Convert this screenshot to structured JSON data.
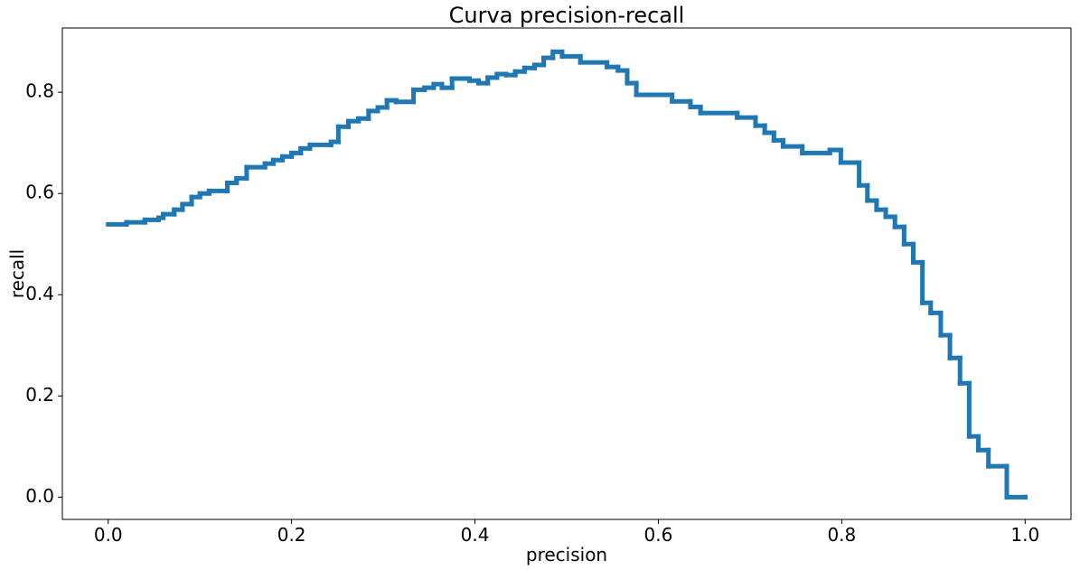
{
  "chart_data": {
    "type": "line",
    "drawstyle": "steps-post",
    "title": "Curva precision-recall",
    "x_label": "precision",
    "y_label": "recall",
    "color": "#1f77b4",
    "x": [
      0,
      0.02,
      0.04,
      0.055,
      0.06,
      0.072,
      0.081,
      0.091,
      0.1,
      0.11,
      0.13,
      0.14,
      0.151,
      0.171,
      0.18,
      0.19,
      0.2,
      0.21,
      0.22,
      0.243,
      0.251,
      0.262,
      0.273,
      0.284,
      0.294,
      0.304,
      0.314,
      0.333,
      0.345,
      0.355,
      0.364,
      0.375,
      0.394,
      0.404,
      0.414,
      0.424,
      0.434,
      0.444,
      0.454,
      0.465,
      0.475,
      0.485,
      0.495,
      0.515,
      0.544,
      0.556,
      0.566,
      0.576,
      0.615,
      0.635,
      0.646,
      0.686,
      0.706,
      0.716,
      0.726,
      0.736,
      0.757,
      0.787,
      0.799,
      0.819,
      0.828,
      0.838,
      0.848,
      0.858,
      0.868,
      0.878,
      0.888,
      0.897,
      0.908,
      0.918,
      0.929,
      0.939,
      0.949,
      0.96,
      0.98,
      1.0
    ],
    "values": [
      0.539,
      0.543,
      0.548,
      0.552,
      0.559,
      0.568,
      0.579,
      0.593,
      0.6,
      0.605,
      0.621,
      0.63,
      0.652,
      0.659,
      0.666,
      0.673,
      0.68,
      0.689,
      0.696,
      0.702,
      0.732,
      0.743,
      0.748,
      0.763,
      0.77,
      0.784,
      0.781,
      0.805,
      0.809,
      0.816,
      0.809,
      0.827,
      0.823,
      0.818,
      0.829,
      0.836,
      0.834,
      0.841,
      0.848,
      0.854,
      0.868,
      0.88,
      0.871,
      0.859,
      0.85,
      0.843,
      0.818,
      0.795,
      0.782,
      0.771,
      0.759,
      0.75,
      0.734,
      0.72,
      0.705,
      0.693,
      0.68,
      0.686,
      0.661,
      0.616,
      0.586,
      0.568,
      0.554,
      0.534,
      0.5,
      0.464,
      0.384,
      0.364,
      0.32,
      0.275,
      0.225,
      0.12,
      0.093,
      0.061,
      0,
      0
    ],
    "xlim": [
      -0.05,
      1.05
    ],
    "ylim": [
      -0.044,
      0.927
    ],
    "xticks": [
      {
        "value": 0,
        "label": "0.0"
      },
      {
        "value": 0.2,
        "label": "0.2"
      },
      {
        "value": 0.4,
        "label": "0.4"
      },
      {
        "value": 0.6,
        "label": "0.6"
      },
      {
        "value": 0.8,
        "label": "0.8"
      },
      {
        "value": 1,
        "label": "1.0"
      }
    ],
    "yticks": [
      {
        "value": 0,
        "label": "0.0"
      },
      {
        "value": 0.2,
        "label": "0.2"
      },
      {
        "value": 0.4,
        "label": "0.4"
      },
      {
        "value": 0.6,
        "label": "0.6"
      },
      {
        "value": 0.8,
        "label": "0.8"
      }
    ]
  }
}
